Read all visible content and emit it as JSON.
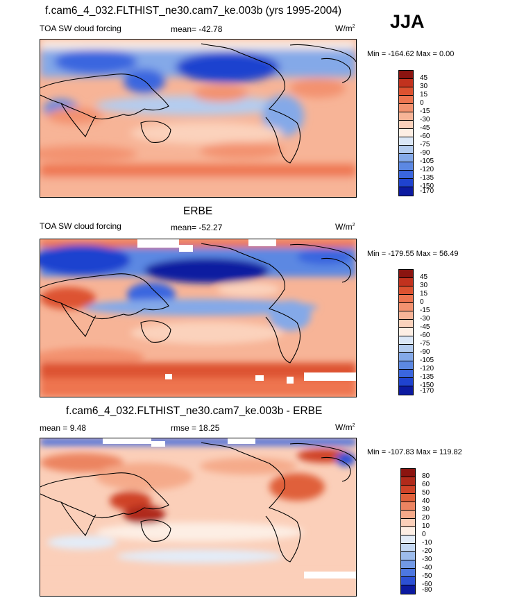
{
  "season": "JJA",
  "colors": {
    "p45": "#8b1410",
    "p30": "#c2321e",
    "p15": "#dd5230",
    "p0": "#ee7550",
    "m15": "#f3926f",
    "m30": "#f7b497",
    "m45": "#fbd2bc",
    "m60": "#fdeee4",
    "m75": "#dbe7f7",
    "m90": "#b4ccef",
    "m105": "#84a9e8",
    "m120": "#5c88e2",
    "m135": "#3a66df",
    "m150": "#1f43cf",
    "m170": "#0c1aa0",
    "d80": "#8b1410",
    "d60": "#b02a1b",
    "d50": "#cf4328",
    "d40": "#e0613b",
    "d30": "#ec8461",
    "d20": "#f5aa8a",
    "d10": "#fbcfb9",
    "d0": "#fdeee4",
    "dm10": "#e3ecf8",
    "dm20": "#c4d8f3",
    "dm30": "#9dbcec",
    "dm40": "#7299e5",
    "dm50": "#4d77e0",
    "dm60": "#2c50d4",
    "dm80": "#0c1aa0"
  },
  "panels": [
    {
      "title": "f.cam6_4_032.FLTHIST_ne30.cam7_ke.003b (yrs 1995-2004)",
      "left_label": "TOA SW cloud forcing",
      "center_label": "mean= -42.78",
      "units": "W/m",
      "units_sup": "2",
      "minmax": "Min = -164.62 Max =   0.00",
      "levels": [
        "45",
        "30",
        "15",
        "0",
        "-15",
        "-30",
        "-45",
        "-60",
        "-75",
        "-90",
        "-105",
        "-120",
        "-135",
        "-150",
        "-170"
      ]
    },
    {
      "title": "ERBE",
      "left_label": "TOA SW cloud forcing",
      "center_label": "mean= -52.27",
      "units": "W/m",
      "units_sup": "2",
      "minmax": "Min = -179.55 Max =  56.49",
      "levels": [
        "45",
        "30",
        "15",
        "0",
        "-15",
        "-30",
        "-45",
        "-60",
        "-75",
        "-90",
        "-105",
        "-120",
        "-135",
        "-150",
        "-170"
      ]
    },
    {
      "title": "f.cam6_4_032.FLTHIST_ne30.cam7_ke.003b - ERBE",
      "left_label": "mean =   9.48",
      "center_label": "rmse =  18.25",
      "units": "W/m",
      "units_sup": "2",
      "minmax": "Min = -107.83 Max = 119.82",
      "levels": [
        "80",
        "60",
        "50",
        "40",
        "30",
        "20",
        "10",
        "0",
        "-10",
        "-20",
        "-30",
        "-40",
        "-50",
        "-60",
        "-80"
      ]
    }
  ]
}
